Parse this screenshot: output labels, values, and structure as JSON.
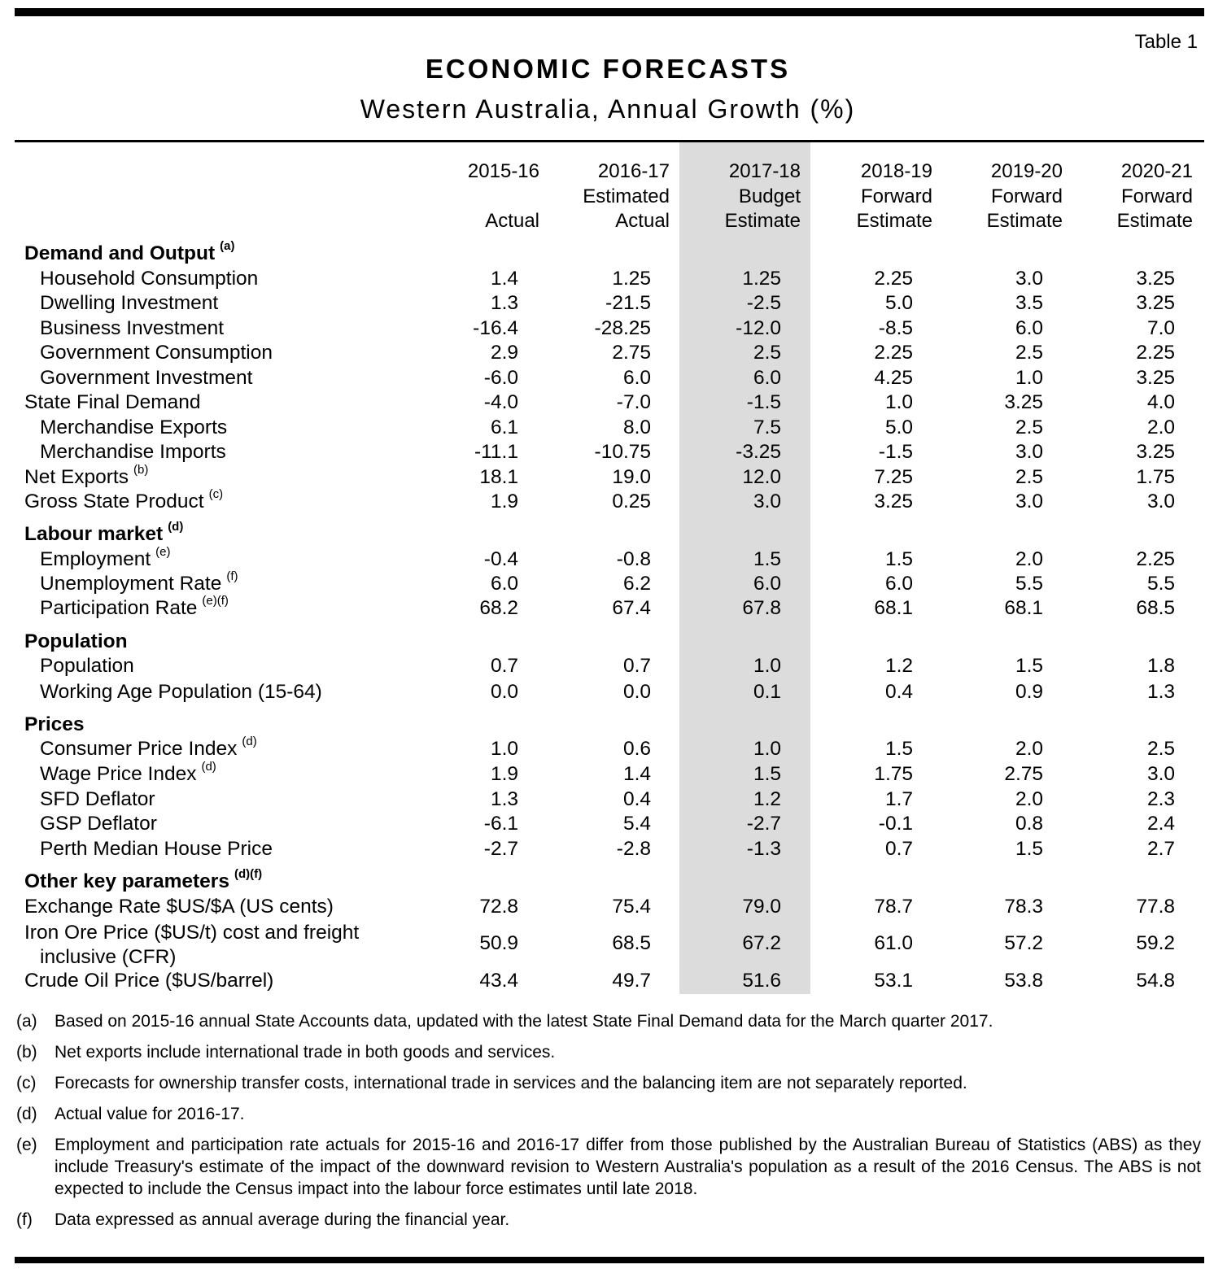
{
  "table_label": "Table 1",
  "title": "ECONOMIC FORECASTS",
  "subtitle": "Western Australia, Annual Growth (%)",
  "columns": [
    {
      "year": "2015-16",
      "line2": "",
      "line3": "Actual"
    },
    {
      "year": "2016-17",
      "line2": "Estimated",
      "line3": "Actual"
    },
    {
      "year": "2017-18",
      "line2": "Budget",
      "line3": "Estimate"
    },
    {
      "year": "2018-19",
      "line2": "Forward",
      "line3": "Estimate"
    },
    {
      "year": "2019-20",
      "line2": "Forward",
      "line3": "Estimate"
    },
    {
      "year": "2020-21",
      "line2": "Forward",
      "line3": "Estimate"
    }
  ],
  "rows": [
    {
      "label": "Demand and Output",
      "sup": "(a)",
      "values": [
        "",
        "",
        "",
        "",
        "",
        ""
      ]
    },
    {
      "label": "Household Consumption",
      "sup": "",
      "values": [
        "1.4",
        "1.25",
        "1.25",
        "2.25",
        "3.0",
        "3.25"
      ]
    },
    {
      "label": "Dwelling Investment",
      "sup": "",
      "values": [
        "1.3",
        "-21.5",
        "-2.5",
        "5.0",
        "3.5",
        "3.25"
      ]
    },
    {
      "label": "Business Investment",
      "sup": "",
      "values": [
        "-16.4",
        "-28.25",
        "-12.0",
        "-8.5",
        "6.0",
        "7.0"
      ]
    },
    {
      "label": "Government Consumption",
      "sup": "",
      "values": [
        "2.9",
        "2.75",
        "2.5",
        "2.25",
        "2.5",
        "2.25"
      ]
    },
    {
      "label": "Government Investment",
      "sup": "",
      "values": [
        "-6.0",
        "6.0",
        "6.0",
        "4.25",
        "1.0",
        "3.25"
      ]
    },
    {
      "label": "State Final Demand",
      "sup": "",
      "values": [
        "-4.0",
        "-7.0",
        "-1.5",
        "1.0",
        "3.25",
        "4.0"
      ]
    },
    {
      "label": "Merchandise Exports",
      "sup": "",
      "values": [
        "6.1",
        "8.0",
        "7.5",
        "5.0",
        "2.5",
        "2.0"
      ]
    },
    {
      "label": "Merchandise Imports",
      "sup": "",
      "values": [
        "-11.1",
        "-10.75",
        "-3.25",
        "-1.5",
        "3.0",
        "3.25"
      ]
    },
    {
      "label": "Net Exports",
      "sup": "(b)",
      "values": [
        "18.1",
        "19.0",
        "12.0",
        "7.25",
        "2.5",
        "1.75"
      ]
    },
    {
      "label": "Gross State Product",
      "sup": "(c)",
      "values": [
        "1.9",
        "0.25",
        "3.0",
        "3.25",
        "3.0",
        "3.0"
      ]
    },
    {
      "label": "Labour market",
      "sup": "(d)",
      "values": [
        "",
        "",
        "",
        "",
        "",
        ""
      ]
    },
    {
      "label": "Employment",
      "sup": "(e)",
      "values": [
        "-0.4",
        "-0.8",
        "1.5",
        "1.5",
        "2.0",
        "2.25"
      ]
    },
    {
      "label": "Unemployment Rate",
      "sup": "(f)",
      "values": [
        "6.0",
        "6.2",
        "6.0",
        "6.0",
        "5.5",
        "5.5"
      ]
    },
    {
      "label": "Participation Rate",
      "sup": "(e)(f)",
      "values": [
        "68.2",
        "67.4",
        "67.8",
        "68.1",
        "68.1",
        "68.5"
      ]
    },
    {
      "label": "Population",
      "sup": "",
      "values": [
        "",
        "",
        "",
        "",
        "",
        ""
      ]
    },
    {
      "label": "Population",
      "sup": "",
      "values": [
        "0.7",
        "0.7",
        "1.0",
        "1.2",
        "1.5",
        "1.8"
      ]
    },
    {
      "label": "Working Age Population (15-64)",
      "sup": "",
      "values": [
        "0.0",
        "0.0",
        "0.1",
        "0.4",
        "0.9",
        "1.3"
      ]
    },
    {
      "label": "Prices",
      "sup": "",
      "values": [
        "",
        "",
        "",
        "",
        "",
        ""
      ]
    },
    {
      "label": "Consumer Price Index",
      "sup": "(d)",
      "values": [
        "1.0",
        "0.6",
        "1.0",
        "1.5",
        "2.0",
        "2.5"
      ]
    },
    {
      "label": "Wage Price Index",
      "sup": "(d)",
      "values": [
        "1.9",
        "1.4",
        "1.5",
        "1.75",
        "2.75",
        "3.0"
      ]
    },
    {
      "label": "SFD Deflator",
      "sup": "",
      "values": [
        "1.3",
        "0.4",
        "1.2",
        "1.7",
        "2.0",
        "2.3"
      ]
    },
    {
      "label": "GSP Deflator",
      "sup": "",
      "values": [
        "-6.1",
        "5.4",
        "-2.7",
        "-0.1",
        "0.8",
        "2.4"
      ]
    },
    {
      "label": "Perth Median House Price",
      "sup": "",
      "values": [
        "-2.7",
        "-2.8",
        "-1.3",
        "0.7",
        "1.5",
        "2.7"
      ]
    },
    {
      "label": "Other key parameters",
      "sup": "(d)(f)",
      "values": [
        "",
        "",
        "",
        "",
        "",
        ""
      ]
    },
    {
      "label": "Exchange Rate $US/$A (US cents)",
      "sup": "",
      "values": [
        "72.8",
        "75.4",
        "79.0",
        "78.7",
        "78.3",
        "77.8"
      ]
    },
    {
      "label": "Iron Ore Price ($US/t) cost and freight",
      "label2": "inclusive (CFR)",
      "sup": "",
      "values": [
        "50.9",
        "68.5",
        "67.2",
        "61.0",
        "57.2",
        "59.2"
      ]
    },
    {
      "label": "Crude Oil Price ($US/barrel)",
      "sup": "",
      "values": [
        "43.4",
        "49.7",
        "51.6",
        "53.1",
        "53.8",
        "54.8"
      ]
    }
  ],
  "notes": [
    {
      "key": "(a)",
      "text": "Based on 2015-16 annual State Accounts data, updated with the latest State Final Demand data for the March quarter 2017."
    },
    {
      "key": "(b)",
      "text": "Net exports include international trade in both goods and services."
    },
    {
      "key": "(c)",
      "text": "Forecasts for ownership transfer costs, international trade in services and the balancing item are not separately reported."
    },
    {
      "key": "(d)",
      "text": "Actual value for 2016-17."
    },
    {
      "key": "(e)",
      "text": "Employment and participation rate actuals for 2015-16 and 2016-17 differ from those published by the Australian Bureau of Statistics (ABS) as they include Treasury's estimate of the impact of the downward revision to Western Australia's population as a result of the 2016 Census. The ABS is not expected to include the Census impact into the labour force estimates until late 2018."
    },
    {
      "key": "(f)",
      "text": "Data expressed as annual average during the financial year."
    }
  ]
}
